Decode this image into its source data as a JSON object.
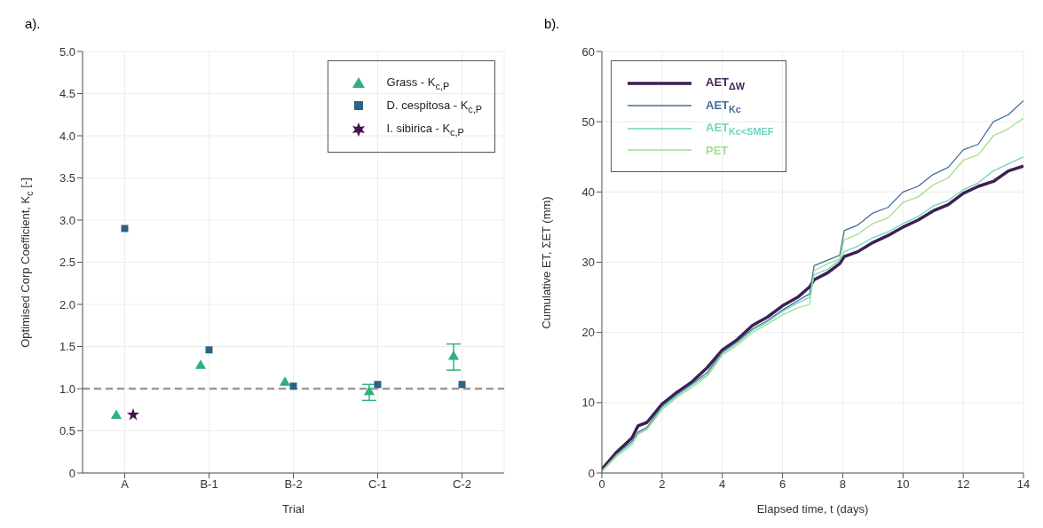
{
  "chart_data": [
    {
      "type": "scatter",
      "title": "a).",
      "xlabel": "Trial",
      "ylabel": "Optimised Corp Coefficient, K$_{c}$ [-]",
      "categories": [
        "A",
        "B-1",
        "B-2",
        "C-1",
        "C-2"
      ],
      "series": [
        {
          "name": "Grass - K$_{c,P}$",
          "color": "#2fb07f",
          "marker": "triangle",
          "values": [
            0.68,
            1.27,
            1.07,
            0.96,
            1.38
          ],
          "errors": [
            null,
            null,
            null,
            [
              0.86,
              1.05
            ],
            [
              1.22,
              1.53
            ]
          ]
        },
        {
          "name": "D. cespitosa - K$_{c,P}$",
          "color": "#2f6285",
          "marker": "square",
          "values": [
            2.9,
            1.46,
            1.03,
            1.05,
            1.05
          ]
        },
        {
          "name": "I. sibirica - K$_{c,P}$",
          "color": "#45124f",
          "marker": "star",
          "values": [
            0.69,
            null,
            null,
            null,
            null
          ]
        }
      ],
      "ylim": [
        0,
        5
      ],
      "yticks": [
        0,
        0.5,
        {
          "value": 1,
          "label": "1.0"
        },
        1.5,
        {
          "value": 2,
          "label": "2.0"
        },
        2.5,
        {
          "value": 3,
          "label": "3.0"
        },
        3.5,
        {
          "value": 4,
          "label": "4.0"
        },
        4.5,
        {
          "value": 5,
          "label": "5.0"
        }
      ],
      "ref_lines": [
        {
          "axis": "y",
          "value": 1,
          "color": "#9a9a9a",
          "line_style": "dashed"
        }
      ],
      "grid": true,
      "legend": "top right"
    },
    {
      "type": "line",
      "title": "b).",
      "xlabel": "Elapsed time, t (days)",
      "ylabel": "Cumulative ET, ΣET (mm)",
      "x": [
        0,
        0.5,
        1,
        1.2,
        1.5,
        2,
        2.5,
        3,
        3.5,
        4,
        4.5,
        5,
        5.5,
        6,
        6.5,
        6.9,
        7.05,
        7.5,
        7.9,
        8.05,
        8.5,
        9,
        9.5,
        10,
        10.5,
        11,
        11.5,
        12,
        12.5,
        13,
        13.5,
        14
      ],
      "series": [
        {
          "name": "AET$_{ΔW}$",
          "color": "#3e1f54",
          "values": [
            0.5,
            3,
            5,
            6.7,
            7.2,
            9.8,
            11.5,
            13,
            15,
            17.5,
            19,
            21,
            22.2,
            23.8,
            25,
            26.5,
            27.5,
            28.5,
            29.8,
            30.8,
            31.5,
            32.8,
            33.8,
            35,
            36,
            37.3,
            38.2,
            39.8,
            40.8,
            41.5,
            43,
            43.7
          ]
        },
        {
          "name": "AET$_{Kc}$",
          "color": "#3f6e9a",
          "values": [
            0.3,
            2.7,
            4.5,
            5.8,
            6.5,
            9.5,
            11.2,
            12.7,
            14.3,
            17.2,
            18.7,
            20.5,
            21.7,
            23.2,
            24.5,
            25.5,
            29.5,
            30.3,
            31,
            34.5,
            35.3,
            37,
            37.8,
            40,
            40.8,
            42.5,
            43.5,
            46,
            46.8,
            50,
            51,
            53
          ]
        },
        {
          "name": "AET$_{Kc<SMEF}$",
          "color": "#6fd3c0",
          "values": [
            0.3,
            2.6,
            4.3,
            5.6,
            6.3,
            9.3,
            11,
            12.5,
            14,
            17,
            18.5,
            20.3,
            21.5,
            23,
            24.2,
            25,
            28.2,
            29,
            30.3,
            31.5,
            32.3,
            33.5,
            34.3,
            35.5,
            36.5,
            38,
            38.8,
            40.3,
            41.3,
            43,
            44,
            45
          ]
        },
        {
          "name": "PET",
          "color": "#9fe08a",
          "values": [
            0.2,
            2.4,
            4,
            5.5,
            6.2,
            9,
            10.8,
            12.2,
            13.8,
            16.8,
            18.2,
            20,
            21.2,
            22.5,
            23.5,
            24,
            28.8,
            29.8,
            30.5,
            33.2,
            34,
            35.5,
            36.3,
            38.5,
            39.3,
            41,
            42,
            44.5,
            45.3,
            48,
            49,
            50.5
          ]
        }
      ],
      "xlim": [
        0,
        14
      ],
      "xticks": [
        0,
        2,
        4,
        6,
        8,
        10,
        12,
        14
      ],
      "ylim": [
        0,
        60
      ],
      "yticks": [
        0,
        10,
        20,
        30,
        40,
        50,
        60
      ],
      "grid": true,
      "legend": "top left",
      "line_style": "solid"
    }
  ]
}
